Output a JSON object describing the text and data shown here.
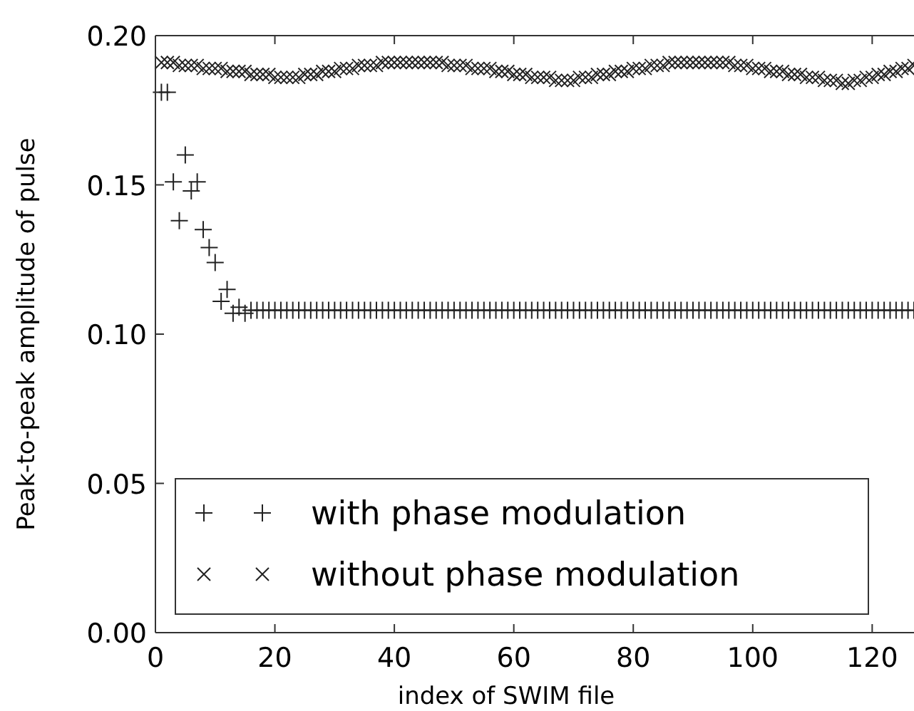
{
  "chart_data": {
    "type": "scatter",
    "xlabel": "index of SWIM file",
    "ylabel": "Peak-to-peak amplitude of pulse",
    "x": [
      1,
      2,
      3,
      4,
      5,
      6,
      7,
      8,
      9,
      10,
      11,
      12,
      13,
      14,
      15,
      16,
      17,
      18,
      19,
      20,
      21,
      22,
      23,
      24,
      25,
      26,
      27,
      28,
      29,
      30,
      31,
      32,
      33,
      34,
      35,
      36,
      37,
      38,
      39,
      40,
      41,
      42,
      43,
      44,
      45,
      46,
      47,
      48,
      49,
      50,
      51,
      52,
      53,
      54,
      55,
      56,
      57,
      58,
      59,
      60,
      61,
      62,
      63,
      64,
      65,
      66,
      67,
      68,
      69,
      70,
      71,
      72,
      73,
      74,
      75,
      76,
      77,
      78,
      79,
      80,
      81,
      82,
      83,
      84,
      85,
      86,
      87,
      88,
      89,
      90,
      91,
      92,
      93,
      94,
      95,
      96,
      97,
      98,
      99,
      100,
      101,
      102,
      103,
      104,
      105,
      106,
      107,
      108,
      109,
      110,
      111,
      112,
      113,
      114,
      115,
      116,
      117,
      118,
      119,
      120,
      121,
      122,
      123,
      124,
      125,
      126,
      127
    ],
    "series": [
      {
        "name": "with phase modulation",
        "color": "#222222",
        "marker": "cross",
        "values": [
          0.181,
          0.181,
          0.151,
          0.138,
          0.16,
          0.148,
          0.151,
          0.135,
          0.129,
          0.124,
          0.111,
          0.115,
          0.107,
          0.109,
          0.107,
          0.108,
          0.108,
          0.108,
          0.108,
          0.108,
          0.108,
          0.108,
          0.108,
          0.108,
          0.108,
          0.108,
          0.108,
          0.108,
          0.108,
          0.108,
          0.108,
          0.108,
          0.108,
          0.108,
          0.108,
          0.108,
          0.108,
          0.108,
          0.108,
          0.108,
          0.108,
          0.108,
          0.108,
          0.108,
          0.108,
          0.108,
          0.108,
          0.108,
          0.108,
          0.108,
          0.108,
          0.108,
          0.108,
          0.108,
          0.108,
          0.108,
          0.108,
          0.108,
          0.108,
          0.108,
          0.108,
          0.108,
          0.108,
          0.108,
          0.108,
          0.108,
          0.108,
          0.108,
          0.108,
          0.108,
          0.108,
          0.108,
          0.108,
          0.108,
          0.108,
          0.108,
          0.108,
          0.108,
          0.108,
          0.108,
          0.108,
          0.108,
          0.108,
          0.108,
          0.108,
          0.108,
          0.108,
          0.108,
          0.108,
          0.108,
          0.108,
          0.108,
          0.108,
          0.108,
          0.108,
          0.108,
          0.108,
          0.108,
          0.108,
          0.108,
          0.108,
          0.108,
          0.108,
          0.108,
          0.108,
          0.108,
          0.108,
          0.108,
          0.108,
          0.108,
          0.108,
          0.108,
          0.108,
          0.108,
          0.108,
          0.108,
          0.108,
          0.108,
          0.108,
          0.108,
          0.108,
          0.108,
          0.108,
          0.108,
          0.108,
          0.108,
          0.108
        ]
      },
      {
        "name": "without phase modulation",
        "color": "#222222",
        "marker": "x",
        "values": [
          0.191,
          0.191,
          0.191,
          0.19,
          0.19,
          0.19,
          0.19,
          0.189,
          0.189,
          0.189,
          0.189,
          0.188,
          0.188,
          0.188,
          0.188,
          0.187,
          0.187,
          0.187,
          0.187,
          0.186,
          0.186,
          0.186,
          0.186,
          0.186,
          0.187,
          0.187,
          0.187,
          0.188,
          0.188,
          0.188,
          0.189,
          0.189,
          0.189,
          0.19,
          0.19,
          0.19,
          0.19,
          0.191,
          0.191,
          0.191,
          0.191,
          0.191,
          0.191,
          0.191,
          0.191,
          0.191,
          0.191,
          0.191,
          0.19,
          0.19,
          0.19,
          0.19,
          0.189,
          0.189,
          0.189,
          0.189,
          0.188,
          0.188,
          0.188,
          0.187,
          0.187,
          0.187,
          0.186,
          0.186,
          0.186,
          0.186,
          0.185,
          0.185,
          0.185,
          0.185,
          0.186,
          0.186,
          0.186,
          0.187,
          0.187,
          0.187,
          0.188,
          0.188,
          0.188,
          0.189,
          0.189,
          0.189,
          0.19,
          0.19,
          0.19,
          0.191,
          0.191,
          0.191,
          0.191,
          0.191,
          0.191,
          0.191,
          0.191,
          0.191,
          0.191,
          0.191,
          0.19,
          0.19,
          0.19,
          0.189,
          0.189,
          0.189,
          0.188,
          0.188,
          0.188,
          0.187,
          0.187,
          0.187,
          0.186,
          0.186,
          0.186,
          0.185,
          0.185,
          0.185,
          0.184,
          0.184,
          0.185,
          0.185,
          0.186,
          0.186,
          0.187,
          0.187,
          0.188,
          0.188,
          0.189,
          0.189,
          0.19
        ]
      }
    ],
    "xlim": [
      0,
      127
    ],
    "xticks": [
      0,
      20,
      40,
      60,
      80,
      100,
      120
    ],
    "ylim": [
      0,
      0.2
    ],
    "yticks": [
      {
        "value": 0,
        "label": "0.00"
      },
      {
        "value": 0.05,
        "label": "0.05"
      },
      {
        "value": 0.1,
        "label": "0.10"
      },
      {
        "value": 0.15,
        "label": "0.15"
      },
      {
        "value": 0.2,
        "label": "0.20"
      }
    ],
    "legend": "bottom left"
  }
}
